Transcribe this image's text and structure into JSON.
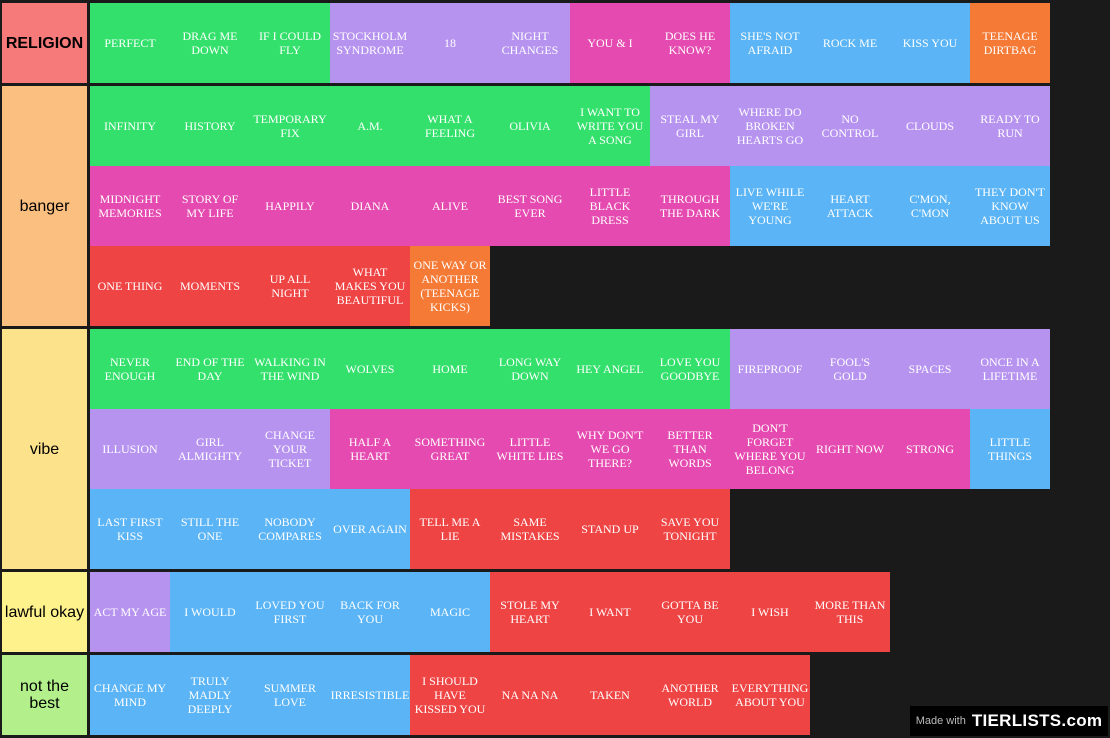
{
  "colors": {
    "green": "#33e06b",
    "purple": "#b793f0",
    "pink": "#e44aaf",
    "blue": "#5ab4f5",
    "orange": "#f47a36",
    "red": "#ef4444",
    "background": "#1a1a1a"
  },
  "tiers": [
    {
      "label": "RELIGION",
      "label_color": "#f77a7a",
      "items": [
        {
          "text": "PERFECT",
          "color": "green"
        },
        {
          "text": "DRAG ME DOWN",
          "color": "green"
        },
        {
          "text": "IF I COULD FLY",
          "color": "green"
        },
        {
          "text": "STOCKHOLM SYNDROME",
          "color": "purple"
        },
        {
          "text": "18",
          "color": "purple"
        },
        {
          "text": "NIGHT CHANGES",
          "color": "purple"
        },
        {
          "text": "YOU & I",
          "color": "pink"
        },
        {
          "text": "DOES HE KNOW?",
          "color": "pink"
        },
        {
          "text": "SHE'S NOT AFRAID",
          "color": "blue"
        },
        {
          "text": "ROCK ME",
          "color": "blue"
        },
        {
          "text": "KISS YOU",
          "color": "blue"
        },
        {
          "text": "TEENAGE DIRTBAG",
          "color": "orange"
        }
      ]
    },
    {
      "label": "banger",
      "label_color": "#fbbf80",
      "items": [
        {
          "text": "INFINITY",
          "color": "green"
        },
        {
          "text": "HISTORY",
          "color": "green"
        },
        {
          "text": "TEMPORARY FIX",
          "color": "green"
        },
        {
          "text": "A.M.",
          "color": "green"
        },
        {
          "text": "WHAT A FEELING",
          "color": "green"
        },
        {
          "text": "OLIVIA",
          "color": "green"
        },
        {
          "text": "I WANT TO WRITE YOU A SONG",
          "color": "green"
        },
        {
          "text": "STEAL MY GIRL",
          "color": "purple"
        },
        {
          "text": "WHERE DO BROKEN HEARTS GO",
          "color": "purple"
        },
        {
          "text": "NO CONTROL",
          "color": "purple"
        },
        {
          "text": "CLOUDS",
          "color": "purple"
        },
        {
          "text": "READY TO RUN",
          "color": "purple"
        },
        {
          "text": "MIDNIGHT MEMORIES",
          "color": "pink"
        },
        {
          "text": "STORY OF MY LIFE",
          "color": "pink"
        },
        {
          "text": "HAPPILY",
          "color": "pink"
        },
        {
          "text": "DIANA",
          "color": "pink"
        },
        {
          "text": "ALIVE",
          "color": "pink"
        },
        {
          "text": "BEST SONG EVER",
          "color": "pink"
        },
        {
          "text": "LITTLE BLACK DRESS",
          "color": "pink"
        },
        {
          "text": "THROUGH THE DARK",
          "color": "pink"
        },
        {
          "text": "LIVE WHILE WE'RE YOUNG",
          "color": "blue"
        },
        {
          "text": "HEART ATTACK",
          "color": "blue"
        },
        {
          "text": "C'MON, C'MON",
          "color": "blue"
        },
        {
          "text": "THEY DON'T KNOW ABOUT US",
          "color": "blue"
        },
        {
          "text": "ONE THING",
          "color": "red"
        },
        {
          "text": "MOMENTS",
          "color": "red"
        },
        {
          "text": "UP ALL NIGHT",
          "color": "red"
        },
        {
          "text": "WHAT MAKES YOU BEAUTIFUL",
          "color": "red"
        },
        {
          "text": "ONE WAY OR ANOTHER (TEENAGE KICKS)",
          "color": "orange"
        }
      ]
    },
    {
      "label": "vibe",
      "label_color": "#fde28c",
      "items": [
        {
          "text": "NEVER ENOUGH",
          "color": "green"
        },
        {
          "text": "END OF THE DAY",
          "color": "green"
        },
        {
          "text": "WALKING IN THE WIND",
          "color": "green"
        },
        {
          "text": "WOLVES",
          "color": "green"
        },
        {
          "text": "HOME",
          "color": "green"
        },
        {
          "text": "LONG WAY DOWN",
          "color": "green"
        },
        {
          "text": "HEY ANGEL",
          "color": "green"
        },
        {
          "text": "LOVE YOU GOODBYE",
          "color": "green"
        },
        {
          "text": "FIREPROOF",
          "color": "purple"
        },
        {
          "text": "FOOL'S GOLD",
          "color": "purple"
        },
        {
          "text": "SPACES",
          "color": "purple"
        },
        {
          "text": "ONCE IN A LIFETIME",
          "color": "purple"
        },
        {
          "text": "ILLUSION",
          "color": "purple"
        },
        {
          "text": "GIRL ALMIGHTY",
          "color": "purple"
        },
        {
          "text": "CHANGE YOUR TICKET",
          "color": "purple"
        },
        {
          "text": "HALF A HEART",
          "color": "pink"
        },
        {
          "text": "SOMETHING GREAT",
          "color": "pink"
        },
        {
          "text": "LITTLE WHITE LIES",
          "color": "pink"
        },
        {
          "text": "WHY DON'T WE GO THERE?",
          "color": "pink"
        },
        {
          "text": "BETTER THAN WORDS",
          "color": "pink"
        },
        {
          "text": "DON'T FORGET WHERE YOU BELONG",
          "color": "pink"
        },
        {
          "text": "RIGHT NOW",
          "color": "pink"
        },
        {
          "text": "STRONG",
          "color": "pink"
        },
        {
          "text": "LITTLE THINGS",
          "color": "blue"
        },
        {
          "text": "LAST FIRST KISS",
          "color": "blue"
        },
        {
          "text": "STILL THE ONE",
          "color": "blue"
        },
        {
          "text": "NOBODY COMPARES",
          "color": "blue"
        },
        {
          "text": "OVER AGAIN",
          "color": "blue"
        },
        {
          "text": "TELL ME A LIE",
          "color": "red"
        },
        {
          "text": "SAME MISTAKES",
          "color": "red"
        },
        {
          "text": "STAND UP",
          "color": "red"
        },
        {
          "text": "SAVE YOU TONIGHT",
          "color": "red"
        }
      ]
    },
    {
      "label": "lawful okay",
      "label_color": "#fdf28c",
      "items": [
        {
          "text": "ACT MY AGE",
          "color": "purple"
        },
        {
          "text": "I WOULD",
          "color": "blue"
        },
        {
          "text": "LOVED YOU FIRST",
          "color": "blue"
        },
        {
          "text": "BACK FOR YOU",
          "color": "blue"
        },
        {
          "text": "MAGIC",
          "color": "blue"
        },
        {
          "text": "STOLE MY HEART",
          "color": "red"
        },
        {
          "text": "I WANT",
          "color": "red"
        },
        {
          "text": "GOTTA BE YOU",
          "color": "red"
        },
        {
          "text": "I WISH",
          "color": "red"
        },
        {
          "text": "MORE THAN THIS",
          "color": "red"
        }
      ]
    },
    {
      "label": "not the best",
      "label_color": "#b3f08c",
      "items": [
        {
          "text": "CHANGE MY MIND",
          "color": "blue"
        },
        {
          "text": "TRULY MADLY DEEPLY",
          "color": "blue"
        },
        {
          "text": "SUMMER LOVE",
          "color": "blue"
        },
        {
          "text": "IRRESISTIBLE",
          "color": "blue"
        },
        {
          "text": "I SHOULD HAVE KISSED YOU",
          "color": "red"
        },
        {
          "text": "NA NA NA",
          "color": "red"
        },
        {
          "text": "TAKEN",
          "color": "red"
        },
        {
          "text": "ANOTHER WORLD",
          "color": "red"
        },
        {
          "text": "EVERYTHING ABOUT YOU",
          "color": "red"
        }
      ]
    }
  ],
  "watermark": {
    "made_with": "Made with",
    "logo": "TIERLISTS.com"
  }
}
